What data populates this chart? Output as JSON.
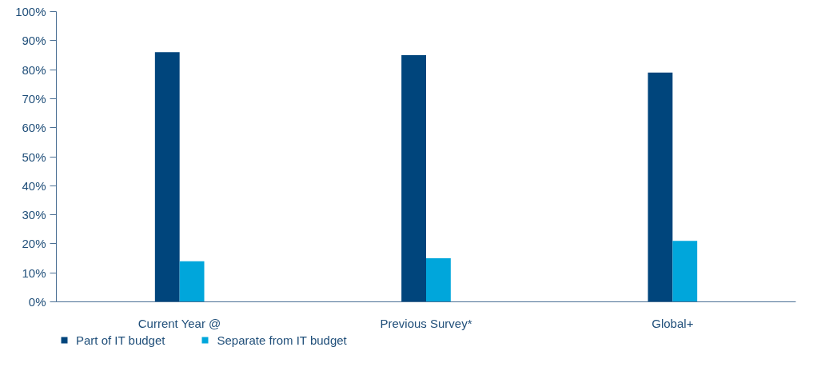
{
  "chart_data": {
    "type": "bar",
    "categories": [
      "Current Year @",
      "Previous Survey*",
      "Global+"
    ],
    "series": [
      {
        "name": "Part of IT budget",
        "color": "#00457c",
        "values": [
          86,
          85,
          79
        ]
      },
      {
        "name": "Separate from IT budget",
        "color": "#00a6db",
        "values": [
          14,
          15,
          21
        ]
      }
    ],
    "ylim": [
      0,
      100
    ],
    "yticks": [
      {
        "value": 0,
        "label": "0%"
      },
      {
        "value": 10,
        "label": "10%"
      },
      {
        "value": 20,
        "label": "20%"
      },
      {
        "value": 30,
        "label": "30%"
      },
      {
        "value": 40,
        "label": "40%"
      },
      {
        "value": 50,
        "label": "50%"
      },
      {
        "value": 60,
        "label": "60%"
      },
      {
        "value": 70,
        "label": "70%"
      },
      {
        "value": 80,
        "label": "80%"
      },
      {
        "value": 90,
        "label": "90%"
      },
      {
        "value": 100,
        "label": "100%"
      }
    ],
    "grid": false,
    "legend": "bottom left"
  }
}
